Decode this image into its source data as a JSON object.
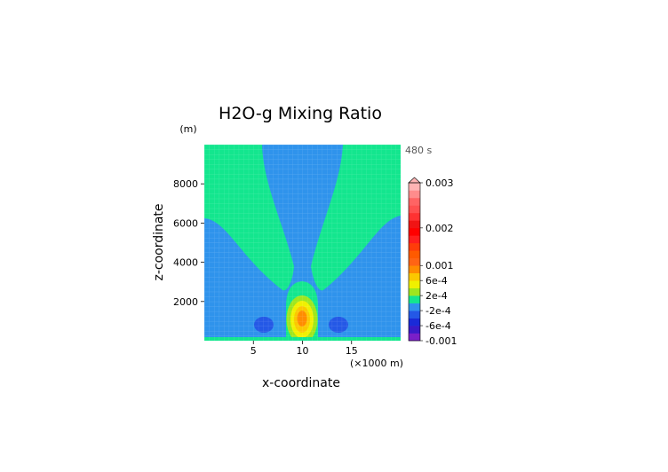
{
  "chart_data": {
    "type": "heatmap",
    "title": "H2O-g Mixing Ratio",
    "xlabel": "x-coordinate",
    "ylabel": "z-coordinate",
    "x_unit": "(×1000 m)",
    "y_unit": "(m)",
    "time_label": "480 s",
    "xlim": [
      0,
      20
    ],
    "ylim": [
      0,
      10000
    ],
    "x_ticks": [
      5,
      10,
      15
    ],
    "y_ticks": [
      2000,
      4000,
      6000,
      8000
    ],
    "colorbar": {
      "levels": [
        -0.001,
        -0.0008,
        -0.0006,
        -0.0004,
        -0.0002,
        0,
        0.0002,
        0.0004,
        0.0006,
        0.0008,
        0.001,
        0.0012,
        0.0014,
        0.0016,
        0.0018,
        0.002,
        0.0022,
        0.0024,
        0.0026,
        0.0028,
        0.003
      ],
      "labels": [
        "0.003",
        "0.002",
        "0.001",
        "6e-4",
        "2e-4",
        "-2e-4",
        "-6e-4",
        "-0.001"
      ],
      "colors": [
        "#7a1fc8",
        "#3a1ac8",
        "#1a2ad8",
        "#2458e6",
        "#2f93ec",
        "#13e68e",
        "#9ee61e",
        "#f0f000",
        "#fbc800",
        "#ff8c00",
        "#ff6414",
        "#ff5a00",
        "#ff3c0a",
        "#ff1e1e",
        "#ff0000",
        "#f01414",
        "#ff3232",
        "#ff5050",
        "#ff6464",
        "#ff8c8c",
        "#ffb4b4"
      ]
    },
    "field_summary": {
      "background_value": "0 to 2e-4",
      "plume_value": "-2e-4 to 0",
      "core_max": "8e-4 to 0.001",
      "core_center_x": 10,
      "core_center_z": 1000,
      "min_lobes_x": [
        6,
        14
      ],
      "min_lobes_z": 700
    },
    "grid": true
  }
}
